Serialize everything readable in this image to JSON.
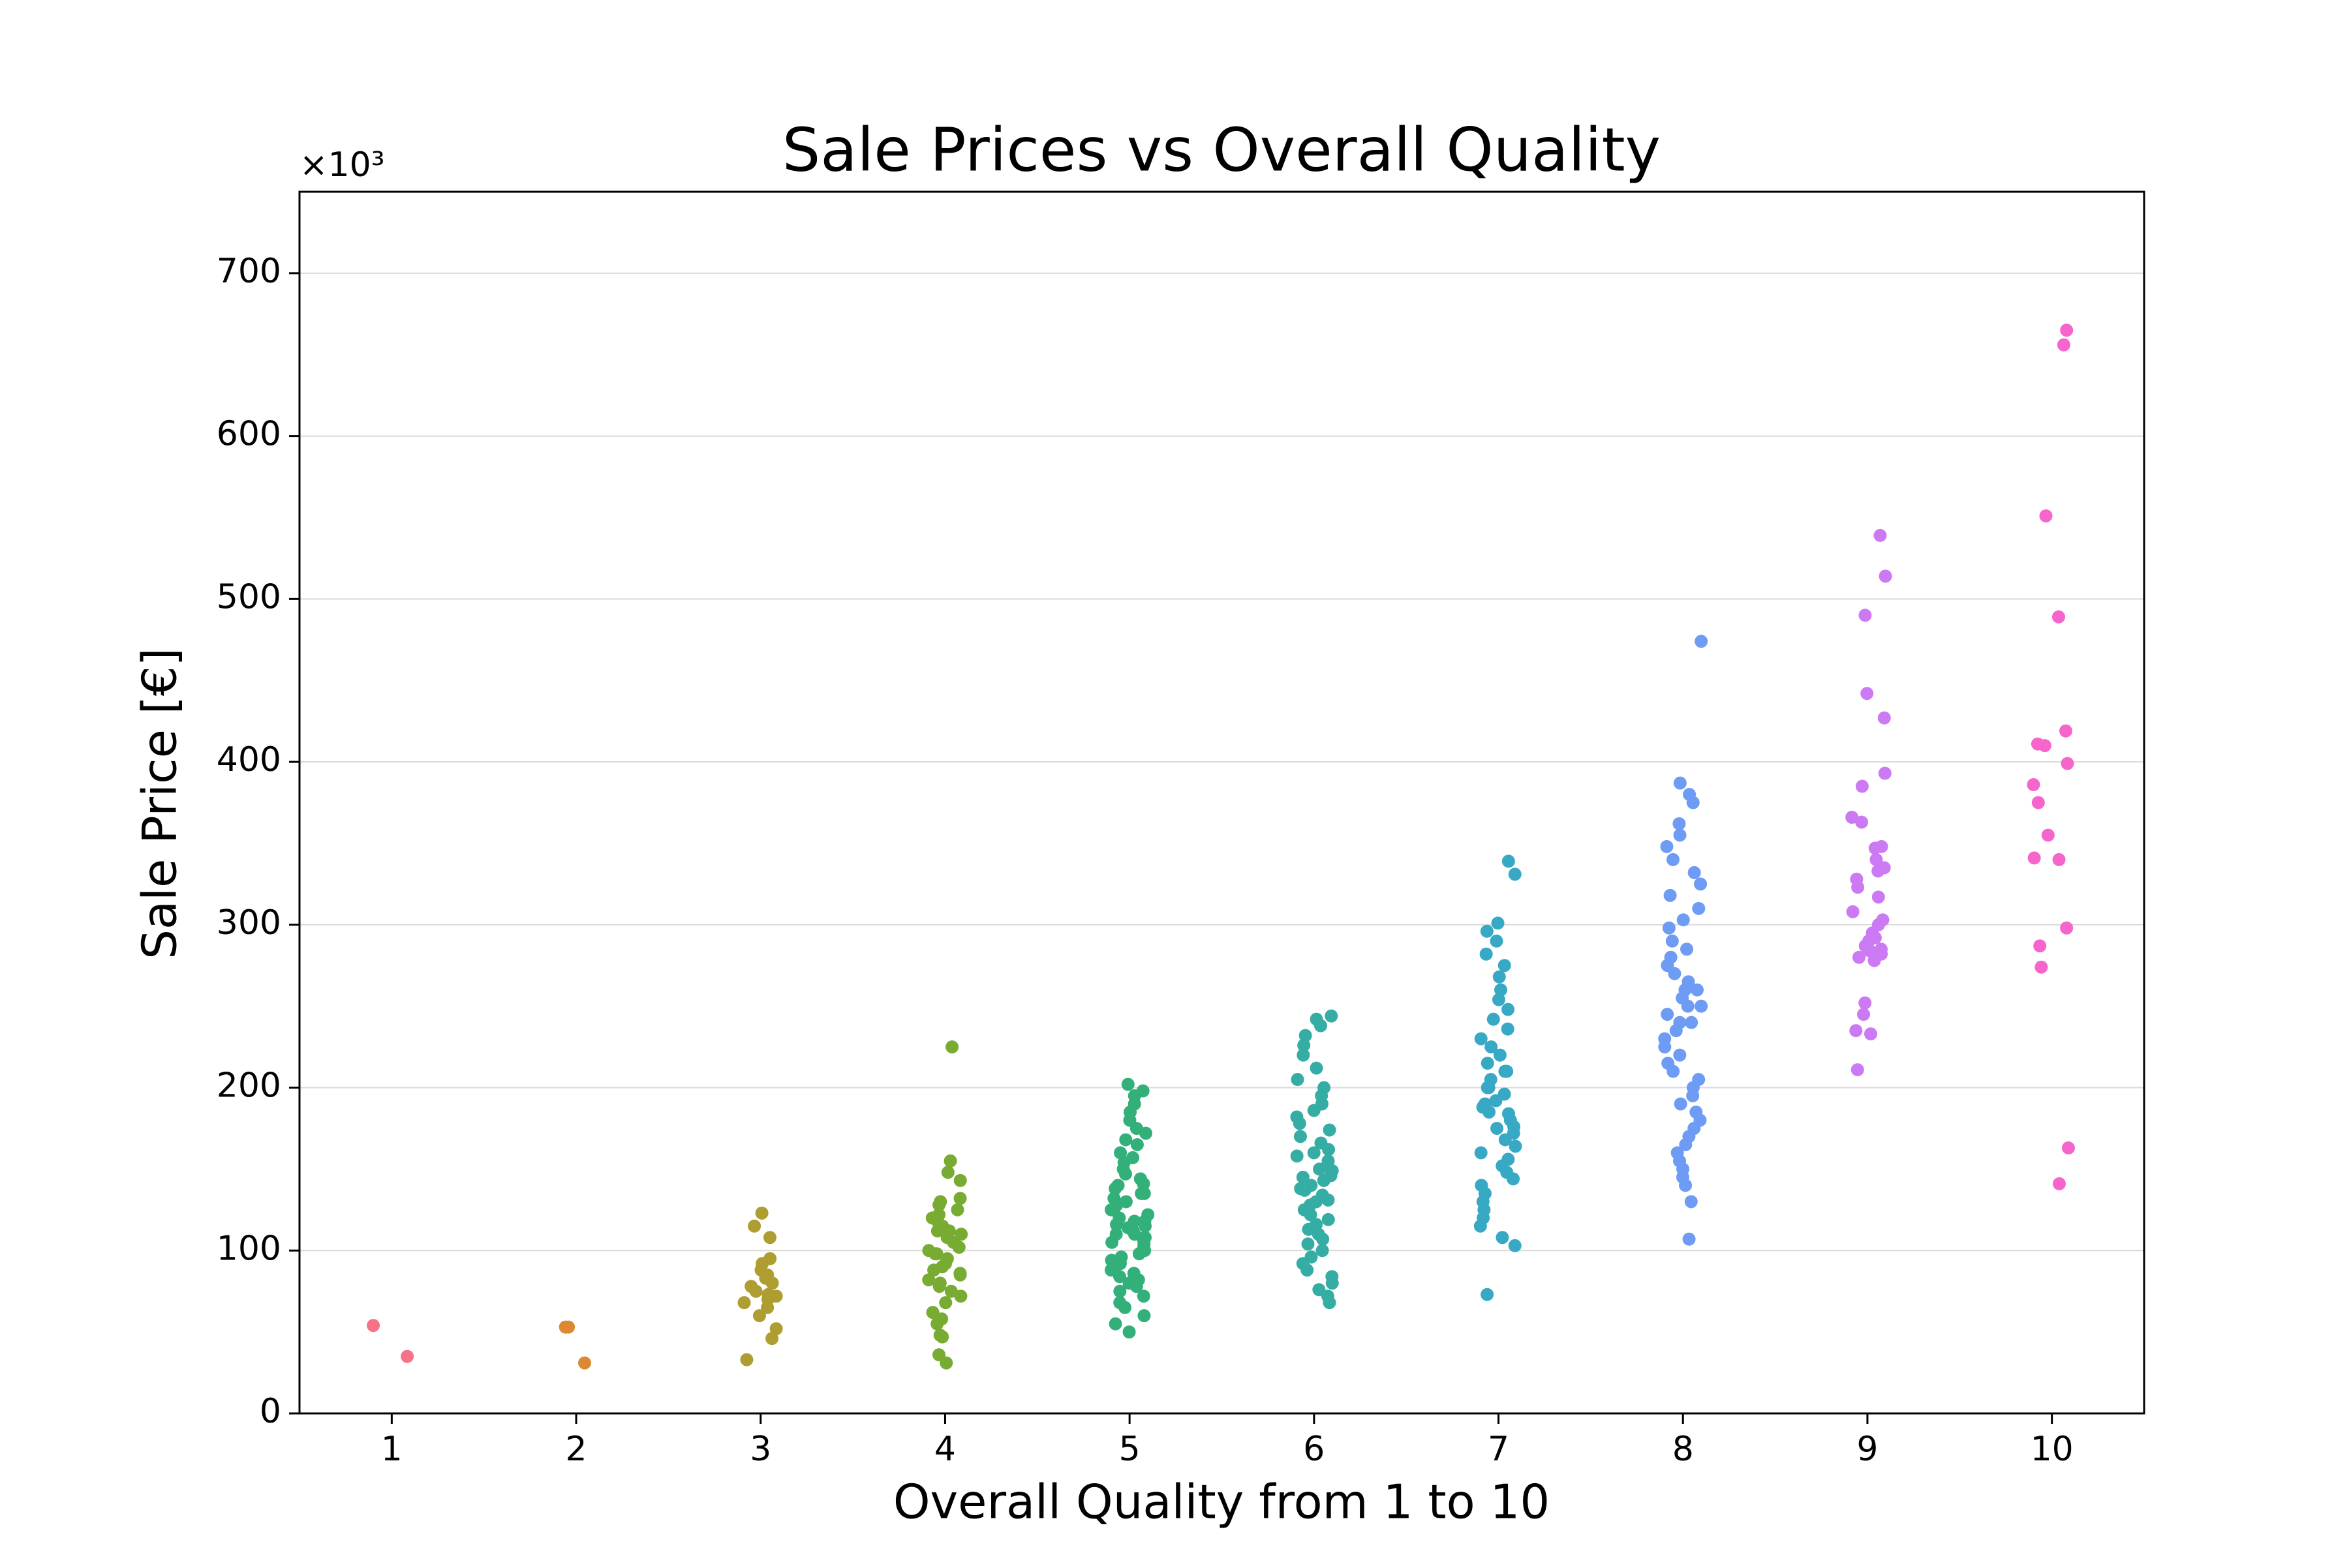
{
  "chart_data": {
    "type": "strip",
    "title": "Sale Prices vs Overall Quality",
    "x_label": "Overall Quality from 1 to 10",
    "y_label": "Sale Price [€]",
    "y_offset_text": "×10³",
    "xlim": [
      0.5,
      10.5
    ],
    "xticks": [
      1,
      2,
      3,
      4,
      5,
      6,
      7,
      8,
      9,
      10
    ],
    "ylim": [
      0,
      750
    ],
    "yticks": [
      0,
      100,
      200,
      300,
      400,
      500,
      600,
      700
    ],
    "grid": true,
    "series": [
      {
        "x": 1,
        "color": "#f77189",
        "values": [
          54,
          35
        ]
      },
      {
        "x": 2,
        "color": "#dc8932",
        "values": [
          53,
          53,
          31
        ]
      },
      {
        "x": 3,
        "color": "#ae9d31",
        "values": [
          123,
          115,
          108,
          95,
          92,
          85,
          83,
          80,
          78,
          75,
          73,
          70,
          68,
          65,
          60,
          52,
          46,
          33,
          88,
          72
        ]
      },
      {
        "x": 4,
        "color": "#77ab31",
        "values": [
          225,
          155,
          148,
          143,
          132,
          130,
          128,
          125,
          122,
          120,
          118,
          115,
          112,
          110,
          108,
          105,
          102,
          100,
          98,
          95,
          92,
          90,
          88,
          85,
          82,
          80,
          78,
          75,
          72,
          68,
          62,
          58,
          55,
          48,
          47,
          36,
          31,
          112,
          98,
          86
        ]
      },
      {
        "x": 5,
        "color": "#33b07a",
        "values": [
          202,
          198,
          195,
          190,
          185,
          180,
          175,
          172,
          168,
          165,
          160,
          157,
          154,
          150,
          147,
          144,
          141,
          138,
          135,
          132,
          130,
          128,
          125,
          122,
          120,
          118,
          116,
          114,
          112,
          110,
          108,
          106,
          104,
          102,
          100,
          98,
          96,
          94,
          92,
          90,
          88,
          86,
          84,
          82,
          80,
          78,
          75,
          72,
          68,
          65,
          60,
          55,
          50,
          125,
          118,
          110,
          115,
          105,
          135,
          140
        ]
      },
      {
        "x": 6,
        "color": "#36ada4",
        "values": [
          244,
          242,
          238,
          232,
          226,
          220,
          212,
          205,
          200,
          195,
          190,
          186,
          182,
          178,
          174,
          170,
          166,
          162,
          158,
          155,
          152,
          149,
          146,
          143,
          140,
          137,
          134,
          131,
          128,
          125,
          122,
          119,
          116,
          113,
          110,
          107,
          104,
          100,
          96,
          92,
          88,
          84,
          80,
          76,
          72,
          68,
          145,
          150,
          138,
          160,
          130
        ]
      },
      {
        "x": 7,
        "color": "#38a9c5",
        "values": [
          339,
          331,
          301,
          296,
          290,
          282,
          275,
          268,
          260,
          254,
          248,
          242,
          236,
          230,
          225,
          220,
          215,
          210,
          205,
          200,
          196,
          192,
          188,
          184,
          180,
          176,
          172,
          168,
          164,
          160,
          156,
          152,
          148,
          144,
          140,
          135,
          130,
          125,
          120,
          115,
          108,
          103,
          73,
          190,
          200,
          210,
          185,
          175
        ]
      },
      {
        "x": 8,
        "color": "#6e9bf4",
        "values": [
          474,
          387,
          380,
          375,
          362,
          355,
          348,
          340,
          332,
          325,
          318,
          310,
          303,
          298,
          290,
          285,
          280,
          275,
          270,
          265,
          260,
          255,
          250,
          245,
          240,
          235,
          230,
          225,
          220,
          215,
          210,
          205,
          200,
          195,
          190,
          185,
          180,
          175,
          170,
          165,
          160,
          155,
          150,
          145,
          140,
          130,
          107,
          250,
          240,
          260
        ]
      },
      {
        "x": 9,
        "color": "#cc7af4",
        "values": [
          539,
          514,
          490,
          442,
          427,
          393,
          385,
          366,
          363,
          348,
          347,
          340,
          335,
          333,
          328,
          323,
          317,
          308,
          303,
          300,
          295,
          292,
          290,
          287,
          285,
          284,
          282,
          280,
          278,
          252,
          245,
          235,
          233,
          211
        ]
      },
      {
        "x": 10,
        "color": "#f565cc",
        "values": [
          665,
          656,
          551,
          489,
          419,
          411,
          410,
          399,
          386,
          375,
          355,
          341,
          340,
          298,
          287,
          274,
          163,
          141
        ]
      }
    ]
  }
}
